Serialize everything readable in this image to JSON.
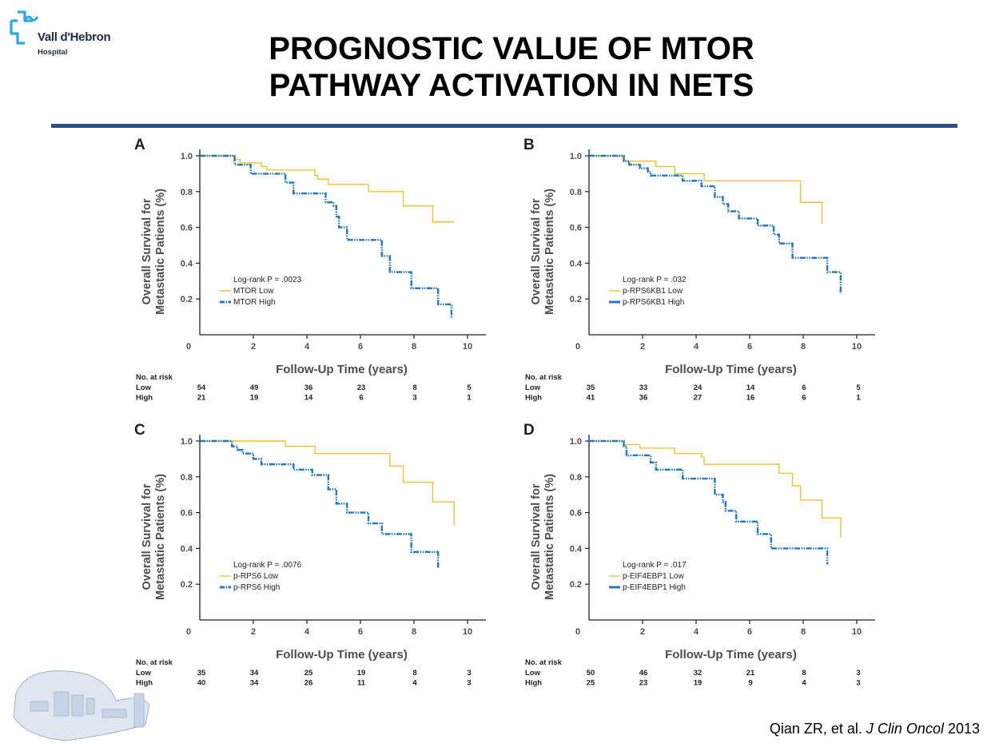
{
  "header": {
    "logo_name": "Vall d'Hebron",
    "logo_sub": "Hospital",
    "title_line1": "PROGNOSTIC VALUE OF MTOR",
    "title_line2": "PATHWAY ACTIVATION IN NETS"
  },
  "citation": {
    "authors": "Qian ZR, et al. ",
    "journal": "J Clin Oncol",
    "year": " 2013"
  },
  "colors": {
    "low": "#f2c230",
    "high": "#1f78c1",
    "rule": "#2d4f82",
    "logo": "#2aa8e0"
  },
  "chart_data": [
    {
      "type": "line",
      "panel": "A",
      "ylabel": "Overall Survival for Metastatic Patients (%)",
      "xlabel": "Follow-Up Time (years)",
      "xlim": [
        0,
        10
      ],
      "ylim": [
        0,
        1.0
      ],
      "xticks": [
        "0",
        "2",
        "4",
        "6",
        "8",
        "10"
      ],
      "yticks": [
        "1.0",
        "0.8",
        "0.6",
        "0.4",
        "0.2"
      ],
      "legend_title": "Log-rank P = .0023",
      "legend_position": "lower-left",
      "series": [
        {
          "name": "MTOR Low",
          "group": "low",
          "steps": [
            [
              0,
              1.0
            ],
            [
              1.3,
              0.98
            ],
            [
              1.5,
              0.96
            ],
            [
              2.3,
              0.94
            ],
            [
              2.5,
              0.92
            ],
            [
              4.3,
              0.89
            ],
            [
              4.4,
              0.87
            ],
            [
              4.8,
              0.84
            ],
            [
              6.3,
              0.8
            ],
            [
              7.6,
              0.72
            ],
            [
              8.7,
              0.63
            ],
            [
              9.5,
              0.63
            ]
          ]
        },
        {
          "name": "MTOR High",
          "group": "high",
          "steps": [
            [
              0,
              1.0
            ],
            [
              1.3,
              0.95
            ],
            [
              1.9,
              0.9
            ],
            [
              3.2,
              0.85
            ],
            [
              3.5,
              0.79
            ],
            [
              4.7,
              0.74
            ],
            [
              5.0,
              0.72
            ],
            [
              5.1,
              0.66
            ],
            [
              5.2,
              0.6
            ],
            [
              5.5,
              0.53
            ],
            [
              6.8,
              0.44
            ],
            [
              7.1,
              0.35
            ],
            [
              7.9,
              0.26
            ],
            [
              8.9,
              0.17
            ],
            [
              9.4,
              0.09
            ]
          ]
        }
      ],
      "at_risk": {
        "header": "No. at risk",
        "rows": [
          {
            "label": "Low",
            "values": [
              "54",
              "49",
              "36",
              "23",
              "8",
              "5"
            ]
          },
          {
            "label": "High",
            "values": [
              "21",
              "19",
              "14",
              "6",
              "3",
              "1"
            ]
          }
        ]
      }
    },
    {
      "type": "line",
      "panel": "B",
      "ylabel": "Overall Survival for Metastatic Patients (%)",
      "xlabel": "Follow-Up Time (years)",
      "xlim": [
        0,
        10
      ],
      "ylim": [
        0,
        1.0
      ],
      "xticks": [
        "0",
        "2",
        "4",
        "6",
        "8",
        "10"
      ],
      "yticks": [
        "1.0",
        "0.8",
        "0.6",
        "0.4",
        "0.2"
      ],
      "legend_title": "Log-rank P = .032",
      "legend_position": "lower-left",
      "series": [
        {
          "name": "p-RPS6KB1 Low",
          "group": "low",
          "steps": [
            [
              0,
              1.0
            ],
            [
              1.3,
              0.97
            ],
            [
              2.5,
              0.94
            ],
            [
              3.2,
              0.9
            ],
            [
              4.3,
              0.86
            ],
            [
              7.9,
              0.74
            ],
            [
              8.7,
              0.62
            ]
          ]
        },
        {
          "name": "p-RPS6KB1 High",
          "group": "high",
          "steps": [
            [
              0,
              1.0
            ],
            [
              1.3,
              0.97
            ],
            [
              1.5,
              0.95
            ],
            [
              1.9,
              0.93
            ],
            [
              2.2,
              0.91
            ],
            [
              2.3,
              0.89
            ],
            [
              3.5,
              0.86
            ],
            [
              4.2,
              0.83
            ],
            [
              4.7,
              0.77
            ],
            [
              5.0,
              0.73
            ],
            [
              5.2,
              0.69
            ],
            [
              5.6,
              0.65
            ],
            [
              6.3,
              0.61
            ],
            [
              6.9,
              0.56
            ],
            [
              7.1,
              0.51
            ],
            [
              7.6,
              0.43
            ],
            [
              8.9,
              0.35
            ],
            [
              9.4,
              0.23
            ]
          ]
        }
      ],
      "at_risk": {
        "header": "No. at risk",
        "rows": [
          {
            "label": "Low",
            "values": [
              "35",
              "33",
              "24",
              "14",
              "6",
              "5"
            ]
          },
          {
            "label": "High",
            "values": [
              "41",
              "36",
              "27",
              "16",
              "6",
              "1"
            ]
          }
        ]
      }
    },
    {
      "type": "line",
      "panel": "C",
      "ylabel": "Overall Survival for Metastatic Patients (%)",
      "xlabel": "Follow-Up Time (years)",
      "xlim": [
        0,
        10
      ],
      "ylim": [
        0,
        1.0
      ],
      "xticks": [
        "0",
        "2",
        "4",
        "6",
        "8",
        "10"
      ],
      "yticks": [
        "1.0",
        "0.8",
        "0.6",
        "0.4",
        "0.2"
      ],
      "legend_title": "Log-rank P = .0076",
      "legend_position": "lower-left",
      "series": [
        {
          "name": "p-RPS6 Low",
          "group": "low",
          "steps": [
            [
              0,
              1.0
            ],
            [
              3.2,
              0.97
            ],
            [
              4.3,
              0.93
            ],
            [
              7.1,
              0.86
            ],
            [
              7.6,
              0.77
            ],
            [
              8.7,
              0.66
            ],
            [
              9.5,
              0.53
            ]
          ]
        },
        {
          "name": "p-RPS6 High",
          "group": "high",
          "steps": [
            [
              0,
              1.0
            ],
            [
              1.2,
              0.97
            ],
            [
              1.4,
              0.95
            ],
            [
              1.6,
              0.93
            ],
            [
              2.0,
              0.9
            ],
            [
              2.3,
              0.87
            ],
            [
              3.5,
              0.84
            ],
            [
              4.2,
              0.81
            ],
            [
              4.8,
              0.73
            ],
            [
              5.1,
              0.65
            ],
            [
              5.5,
              0.6
            ],
            [
              6.3,
              0.54
            ],
            [
              6.8,
              0.48
            ],
            [
              7.9,
              0.38
            ],
            [
              8.9,
              0.29
            ]
          ]
        }
      ],
      "at_risk": {
        "header": "No. at risk",
        "rows": [
          {
            "label": "Low",
            "values": [
              "35",
              "34",
              "25",
              "19",
              "8",
              "3"
            ]
          },
          {
            "label": "High",
            "values": [
              "40",
              "34",
              "26",
              "11",
              "4",
              "3"
            ]
          }
        ]
      }
    },
    {
      "type": "line",
      "panel": "D",
      "ylabel": "Overall Survival for Metastatic Patients (%)",
      "xlabel": "Follow-Up Time (years)",
      "xlim": [
        0,
        10
      ],
      "ylim": [
        0,
        1.0
      ],
      "xticks": [
        "0",
        "2",
        "4",
        "6",
        "8",
        "10"
      ],
      "yticks": [
        "1.0",
        "0.8",
        "0.6",
        "0.4",
        "0.2"
      ],
      "legend_title": "Log-rank P = .017",
      "legend_position": "lower-left",
      "series": [
        {
          "name": "p-EIF4EBP1 Low",
          "group": "low",
          "steps": [
            [
              0,
              1.0
            ],
            [
              1.3,
              0.98
            ],
            [
              1.9,
              0.96
            ],
            [
              3.2,
              0.93
            ],
            [
              4.2,
              0.91
            ],
            [
              4.3,
              0.87
            ],
            [
              7.1,
              0.82
            ],
            [
              7.6,
              0.75
            ],
            [
              7.9,
              0.67
            ],
            [
              8.7,
              0.57
            ],
            [
              9.4,
              0.46
            ]
          ]
        },
        {
          "name": "p-EIF4EBP1 High",
          "group": "high",
          "steps": [
            [
              0,
              1.0
            ],
            [
              1.3,
              0.97
            ],
            [
              1.4,
              0.92
            ],
            [
              2.3,
              0.88
            ],
            [
              2.5,
              0.84
            ],
            [
              3.5,
              0.79
            ],
            [
              4.7,
              0.7
            ],
            [
              5.0,
              0.66
            ],
            [
              5.1,
              0.61
            ],
            [
              5.5,
              0.55
            ],
            [
              6.3,
              0.48
            ],
            [
              6.8,
              0.4
            ],
            [
              8.9,
              0.31
            ]
          ]
        }
      ],
      "at_risk": {
        "header": "No. at risk",
        "rows": [
          {
            "label": "Low",
            "values": [
              "50",
              "46",
              "32",
              "21",
              "8",
              "3"
            ]
          },
          {
            "label": "High",
            "values": [
              "25",
              "23",
              "19",
              "9",
              "4",
              "3"
            ]
          }
        ]
      }
    }
  ]
}
